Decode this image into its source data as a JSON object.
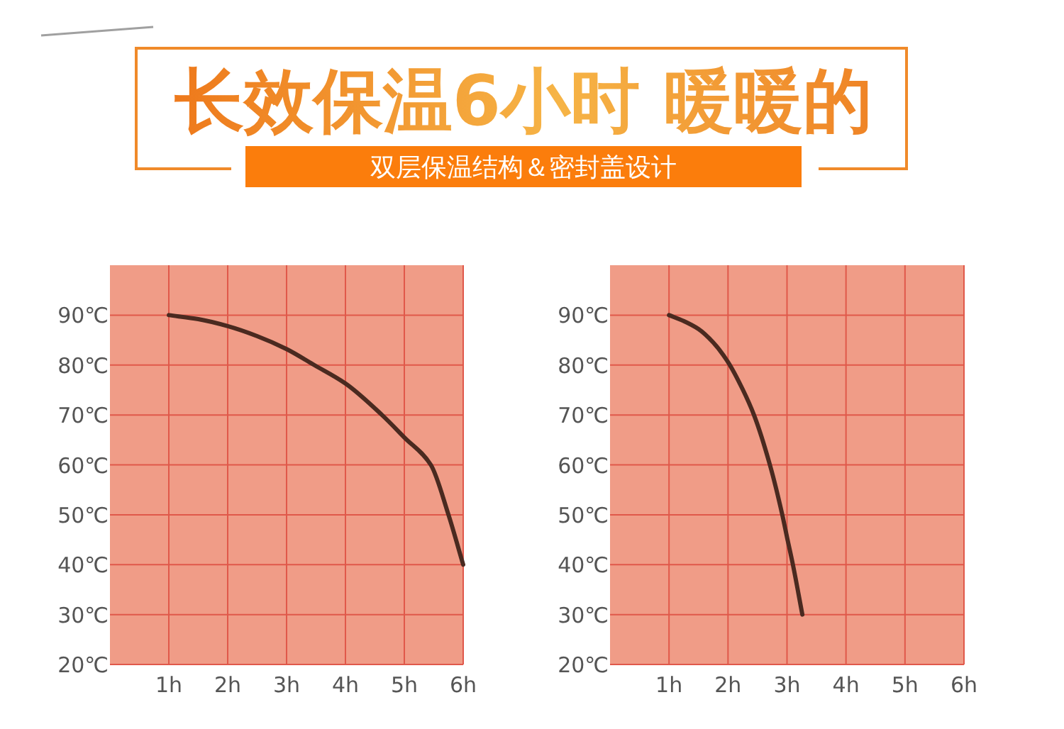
{
  "chart_data": [
    {
      "type": "line",
      "title": "长效保温6小时 暖暖的",
      "subtitle": "双层保温结构＆密封盖设计",
      "x": [
        1,
        1.5,
        2,
        2.5,
        3,
        3.47,
        4,
        4.62,
        5,
        5.45,
        5.75,
        6
      ],
      "values": [
        90,
        89.2,
        87.8,
        85.8,
        83.2,
        80,
        76.3,
        70,
        65.5,
        60,
        50,
        40
      ],
      "color": "#4a2a20",
      "xlim": [
        0,
        6
      ],
      "ylim": [
        20,
        100
      ],
      "xticks": [
        {
          "value": 1,
          "label": "1h"
        },
        {
          "value": 2,
          "label": "2h"
        },
        {
          "value": 3,
          "label": "3h"
        },
        {
          "value": 4,
          "label": "4h"
        },
        {
          "value": 5,
          "label": "5h"
        },
        {
          "value": 6,
          "label": "6h"
        }
      ],
      "yticks": [
        {
          "value": 20,
          "label": "20℃"
        },
        {
          "value": 30,
          "label": "30℃"
        },
        {
          "value": 40,
          "label": "40℃"
        },
        {
          "value": 50,
          "label": "50℃"
        },
        {
          "value": 60,
          "label": "60℃"
        },
        {
          "value": 70,
          "label": "70℃"
        },
        {
          "value": 80,
          "label": "80℃"
        },
        {
          "value": 90,
          "label": "90℃"
        }
      ],
      "grid": true,
      "line_style": "solid"
    },
    {
      "type": "line",
      "x": [
        1,
        1.25,
        1.5,
        1.75,
        2,
        2.25,
        2.44,
        2.71,
        2.92,
        3,
        3.1,
        3.26
      ],
      "values": [
        90,
        88.8,
        87.2,
        84.5,
        80.6,
        75.1,
        70,
        60,
        50,
        45.5,
        40,
        30
      ],
      "color": "#4a2a20",
      "xlim": [
        0,
        6
      ],
      "ylim": [
        20,
        100
      ],
      "xticks": [
        {
          "value": 1,
          "label": "1h"
        },
        {
          "value": 2,
          "label": "2h"
        },
        {
          "value": 3,
          "label": "3h"
        },
        {
          "value": 4,
          "label": "4h"
        },
        {
          "value": 5,
          "label": "5h"
        },
        {
          "value": 6,
          "label": "6h"
        }
      ],
      "yticks": [
        {
          "value": 20,
          "label": "20℃"
        },
        {
          "value": 30,
          "label": "30℃"
        },
        {
          "value": 40,
          "label": "40℃"
        },
        {
          "value": 50,
          "label": "50℃"
        },
        {
          "value": 60,
          "label": "60℃"
        },
        {
          "value": 70,
          "label": "70℃"
        },
        {
          "value": 80,
          "label": "80℃"
        },
        {
          "value": 90,
          "label": "90℃"
        }
      ],
      "grid": true,
      "line_style": "solid"
    }
  ]
}
